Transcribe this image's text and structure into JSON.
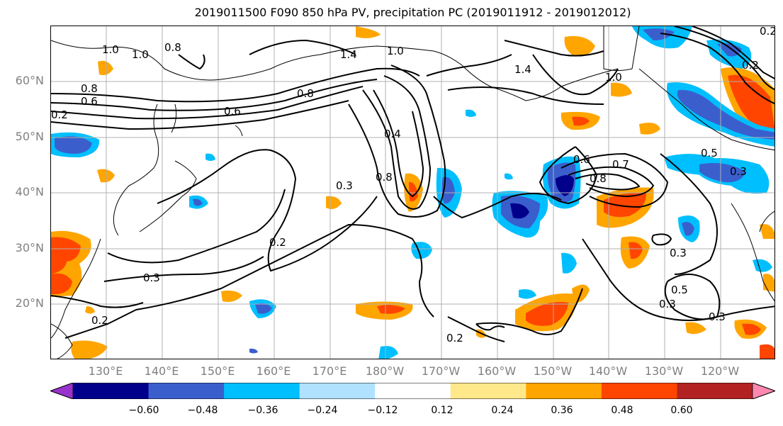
{
  "title": "2019011500 F090 850 hPa PV, precipitation PC (2019011912 - 2019012012)",
  "lat_labels": [
    "60°N",
    "50°N",
    "40°N",
    "30°N",
    "20°N"
  ],
  "lon_labels": [
    "130°E",
    "140°E",
    "150°E",
    "160°E",
    "170°E",
    "180°W",
    "170°W",
    "160°W",
    "150°W",
    "140°W",
    "130°W",
    "120°W"
  ],
  "contour_labels": [
    "1.0",
    "1.0",
    "0.8",
    "1.4",
    "1.0",
    "1.4",
    "1.0",
    "0.8",
    "0.8",
    "0.6",
    "0.6",
    "0.2",
    "0.4",
    "0.3",
    "0.8",
    "0.6",
    "0.8",
    "0.7",
    "0.5",
    "0.3",
    "0.2",
    "0.3",
    "0.2",
    "0.2",
    "0.3",
    "0.3",
    "0.5",
    "0.3",
    "0.2",
    "0.2"
  ],
  "colorbar": {
    "ticks": [
      "−0.60",
      "−0.48",
      "−0.36",
      "−0.24",
      "−0.12",
      "0.12",
      "0.24",
      "0.36",
      "0.48",
      "0.60"
    ],
    "colors": [
      "#9932cc",
      "#00008b",
      "#3a5fcd",
      "#00bfff",
      "#b0e2ff",
      "#ffffff",
      "#ffe88a",
      "#ffa500",
      "#ff4500",
      "#b22222",
      "#ff88b0"
    ]
  },
  "legend_colors": {
    "land_outline": "#000000",
    "grid": "#b0b0b0",
    "contour": "#000000"
  }
}
